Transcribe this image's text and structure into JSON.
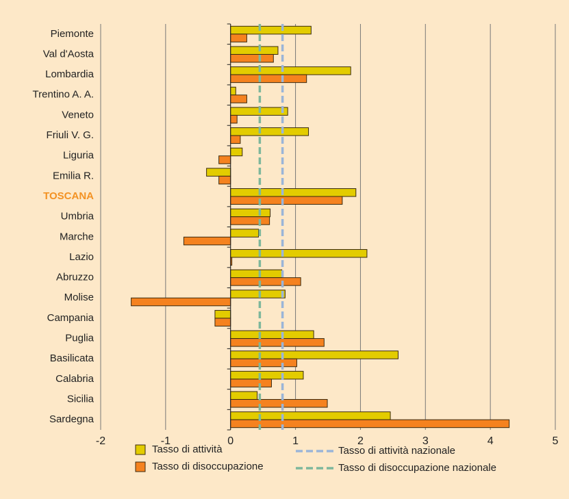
{
  "chart_data": {
    "type": "barh",
    "categories": [
      "Piemonte",
      "Val d'Aosta",
      "Lombardia",
      "Trentino A. A.",
      "Veneto",
      "Friuli V. G.",
      "Liguria",
      "Emilia R.",
      "TOSCANA",
      "Umbria",
      "Marche",
      "Lazio",
      "Abruzzo",
      "Molise",
      "Campania",
      "Puglia",
      "Basilicata",
      "Calabria",
      "Sicilia",
      "Sardegna"
    ],
    "highlight": "TOSCANA",
    "highlight_color": "#f39223",
    "series": [
      {
        "name": "Tasso di attività",
        "color": "#e3cc00",
        "values": [
          1.24,
          0.73,
          1.85,
          0.08,
          0.88,
          1.2,
          0.18,
          -0.37,
          1.93,
          0.61,
          0.43,
          2.1,
          0.79,
          0.84,
          -0.24,
          1.28,
          2.58,
          1.12,
          0.41,
          2.46
        ]
      },
      {
        "name": "Tasso di disoccupazione",
        "color": "#f5821f",
        "values": [
          0.25,
          0.66,
          1.17,
          0.25,
          0.1,
          0.15,
          -0.18,
          -0.18,
          1.72,
          0.6,
          -0.72,
          0.02,
          1.08,
          -1.53,
          -0.24,
          1.44,
          1.02,
          0.63,
          1.49,
          4.29
        ]
      }
    ],
    "reference_lines": [
      {
        "name": "Tasso di attività nazionale",
        "color": "#9ab5d8",
        "value": 0.8
      },
      {
        "name": "Tasso di disoccupazione nazionale",
        "color": "#7db79c",
        "value": 0.45
      }
    ],
    "xlim": [
      -2,
      5
    ],
    "xticks": [
      -2,
      -1,
      0,
      1,
      2,
      3,
      4,
      5
    ],
    "grid": true
  }
}
